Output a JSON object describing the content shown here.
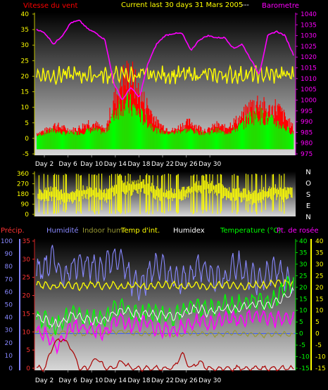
{
  "header": {
    "wind_label": "Vitesse du vent",
    "title": "Current last 30 days 31 Mars 2005",
    "separator": "---",
    "baro_label": "Barometre"
  },
  "compass_letters": [
    "N",
    "O",
    "S",
    "E",
    "N"
  ],
  "legend": {
    "precip": "Précip.",
    "humidite": "Humidité",
    "indoor_hum": "Indoor hum",
    "temp_int": "Temp d'int.",
    "humidex": "Humidex",
    "temperature": "Temperature (°C)",
    "dewpoint": "Pt. de rosée"
  },
  "colors": {
    "wind_gust": "#ff0000",
    "wind_avg": "#00ff00",
    "baro": "#ff00ff",
    "direction": "#ffff00",
    "precip": "#ff2222",
    "humidity": "#8888ff",
    "indoor_hum": "#999933",
    "temp_int": "#ffff00",
    "humidex": "#ffffff",
    "temperature": "#00ff00",
    "dewpoint": "#ff00ff"
  },
  "chart_data": [
    {
      "type": "area",
      "name": "wind_baro",
      "x_ticks": [
        "Day 2",
        "Day 6",
        "Day 10",
        "Day 14",
        "Day 18",
        "Day 22",
        "Day 26",
        "Day 30"
      ],
      "y_left_ticks": [
        "40",
        "35",
        "30",
        "25",
        "20",
        "15",
        "10",
        "5",
        "0",
        "-5"
      ],
      "y_left_lim": [
        -5,
        40
      ],
      "y_right_ticks": [
        "1040",
        "1035",
        "1030",
        "1025",
        "1020",
        "1015",
        "1010",
        "1005",
        "1000",
        "995",
        "990",
        "985",
        "980",
        "975"
      ],
      "y_right_lim": [
        975,
        1040
      ],
      "series": [
        {
          "name": "Vitesse du vent",
          "axis": "left",
          "values": [
            2,
            3,
            5,
            4,
            3,
            4,
            6,
            5,
            3,
            14,
            22,
            24,
            16,
            12,
            6,
            4,
            3,
            5,
            6,
            4,
            3,
            5,
            4,
            6,
            8,
            12,
            14,
            10,
            12,
            8,
            4
          ]
        },
        {
          "name": "Barometre",
          "axis": "right",
          "values": [
            1033,
            1031,
            1026,
            1030,
            1036,
            1037,
            1033,
            1031,
            1028,
            1008,
            1000,
            1006,
            1001,
            1017,
            1026,
            1030,
            1031,
            1031,
            1023,
            1028,
            1030,
            1029,
            1029,
            1024,
            1026,
            1019,
            1012,
            1030,
            1032,
            1030,
            1021
          ]
        }
      ],
      "wind_avg_values": [
        1,
        2,
        3,
        2,
        2,
        2,
        3,
        3,
        2,
        9,
        14,
        12,
        9,
        6,
        3,
        2,
        2,
        3,
        3,
        2,
        2,
        3,
        2,
        3,
        5,
        8,
        9,
        7,
        6,
        4,
        2
      ],
      "yellow_baseline": 20
    },
    {
      "type": "area",
      "name": "wind_direction",
      "y_ticks": [
        "360",
        "270",
        "180",
        "90",
        "0"
      ],
      "y_lim": [
        0,
        360
      ],
      "compass": [
        "N",
        "O",
        "S",
        "E",
        "N"
      ],
      "values": [
        160,
        180,
        200,
        150,
        170,
        190,
        210,
        180,
        170,
        230,
        250,
        240,
        260,
        240,
        200,
        180,
        170,
        190,
        220,
        240,
        260,
        230,
        200,
        170,
        180,
        160,
        170,
        190,
        210,
        180,
        220
      ]
    },
    {
      "type": "line",
      "name": "humidity_temp",
      "x_ticks": [
        "Day 2",
        "Day 6",
        "Day 10",
        "Day 14",
        "Day 18",
        "Day 22",
        "Day 26",
        "Day 30"
      ],
      "y_left_ticks": [
        "100",
        "90",
        "80",
        "70",
        "60",
        "50",
        "40",
        "30",
        "20",
        "10",
        "0"
      ],
      "y_left_lim": [
        0,
        100
      ],
      "y_precip_ticks": [
        "35",
        "30",
        "25",
        "20",
        "15",
        "10",
        "5",
        "0"
      ],
      "y_precip_lim": [
        0,
        35
      ],
      "y_right_ticks": [
        "40",
        "35",
        "30",
        "25",
        "20",
        "15",
        "10",
        "5",
        "0",
        "-5",
        "-10",
        "-15"
      ],
      "y_right_lim": [
        -15,
        40
      ],
      "series": [
        {
          "name": "Humidité",
          "values": [
            75,
            80,
            86,
            72,
            78,
            85,
            80,
            76,
            82,
            86,
            84,
            70,
            66,
            72,
            82,
            76,
            70,
            68,
            74,
            80,
            76,
            72,
            70,
            82,
            78,
            72,
            68,
            74,
            80,
            70,
            66
          ]
        },
        {
          "name": "Indoor hum",
          "values": [
            28,
            28,
            27,
            28,
            28,
            27,
            27,
            28,
            28,
            28,
            29,
            28,
            27,
            27,
            28,
            27,
            26,
            27,
            28,
            27,
            27,
            26,
            27,
            28,
            27,
            27,
            26,
            26,
            27,
            27,
            26
          ]
        },
        {
          "name": "Temp d'int.",
          "values": [
            21,
            21,
            20,
            21,
            21,
            20,
            21,
            21,
            20,
            21,
            20,
            21,
            21,
            20,
            21,
            21,
            21,
            20,
            21,
            21,
            20,
            21,
            21,
            21,
            20,
            21,
            21,
            21,
            22,
            22,
            22
          ]
        },
        {
          "name": "Humidex",
          "values": [
            7,
            6,
            4,
            5,
            8,
            7,
            6,
            5,
            6,
            9,
            10,
            9,
            8,
            9,
            8,
            8,
            7,
            9,
            10,
            11,
            9,
            10,
            11,
            10,
            12,
            12,
            13,
            12,
            14,
            16,
            18
          ]
        },
        {
          "name": "Temperature (°C)",
          "values": [
            7,
            6,
            3,
            5,
            9,
            8,
            7,
            6,
            6,
            10,
            12,
            9,
            8,
            10,
            9,
            8,
            7,
            10,
            11,
            12,
            10,
            11,
            13,
            12,
            13,
            14,
            15,
            13,
            16,
            20,
            22
          ]
        },
        {
          "name": "Pt. de rosée",
          "values": [
            1,
            0,
            -5,
            -4,
            4,
            3,
            2,
            1,
            0,
            5,
            6,
            3,
            4,
            5,
            2,
            2,
            1,
            3,
            4,
            6,
            4,
            5,
            7,
            6,
            6,
            7,
            8,
            6,
            6,
            7,
            6
          ]
        },
        {
          "name": "Précip.",
          "values": [
            0,
            0,
            7,
            8,
            6,
            0,
            0,
            3,
            0,
            0,
            2,
            0,
            0,
            0,
            0,
            0,
            0,
            4,
            0,
            2,
            0,
            0,
            0,
            0,
            0,
            0,
            0,
            0,
            0,
            0,
            0
          ]
        }
      ]
    }
  ]
}
